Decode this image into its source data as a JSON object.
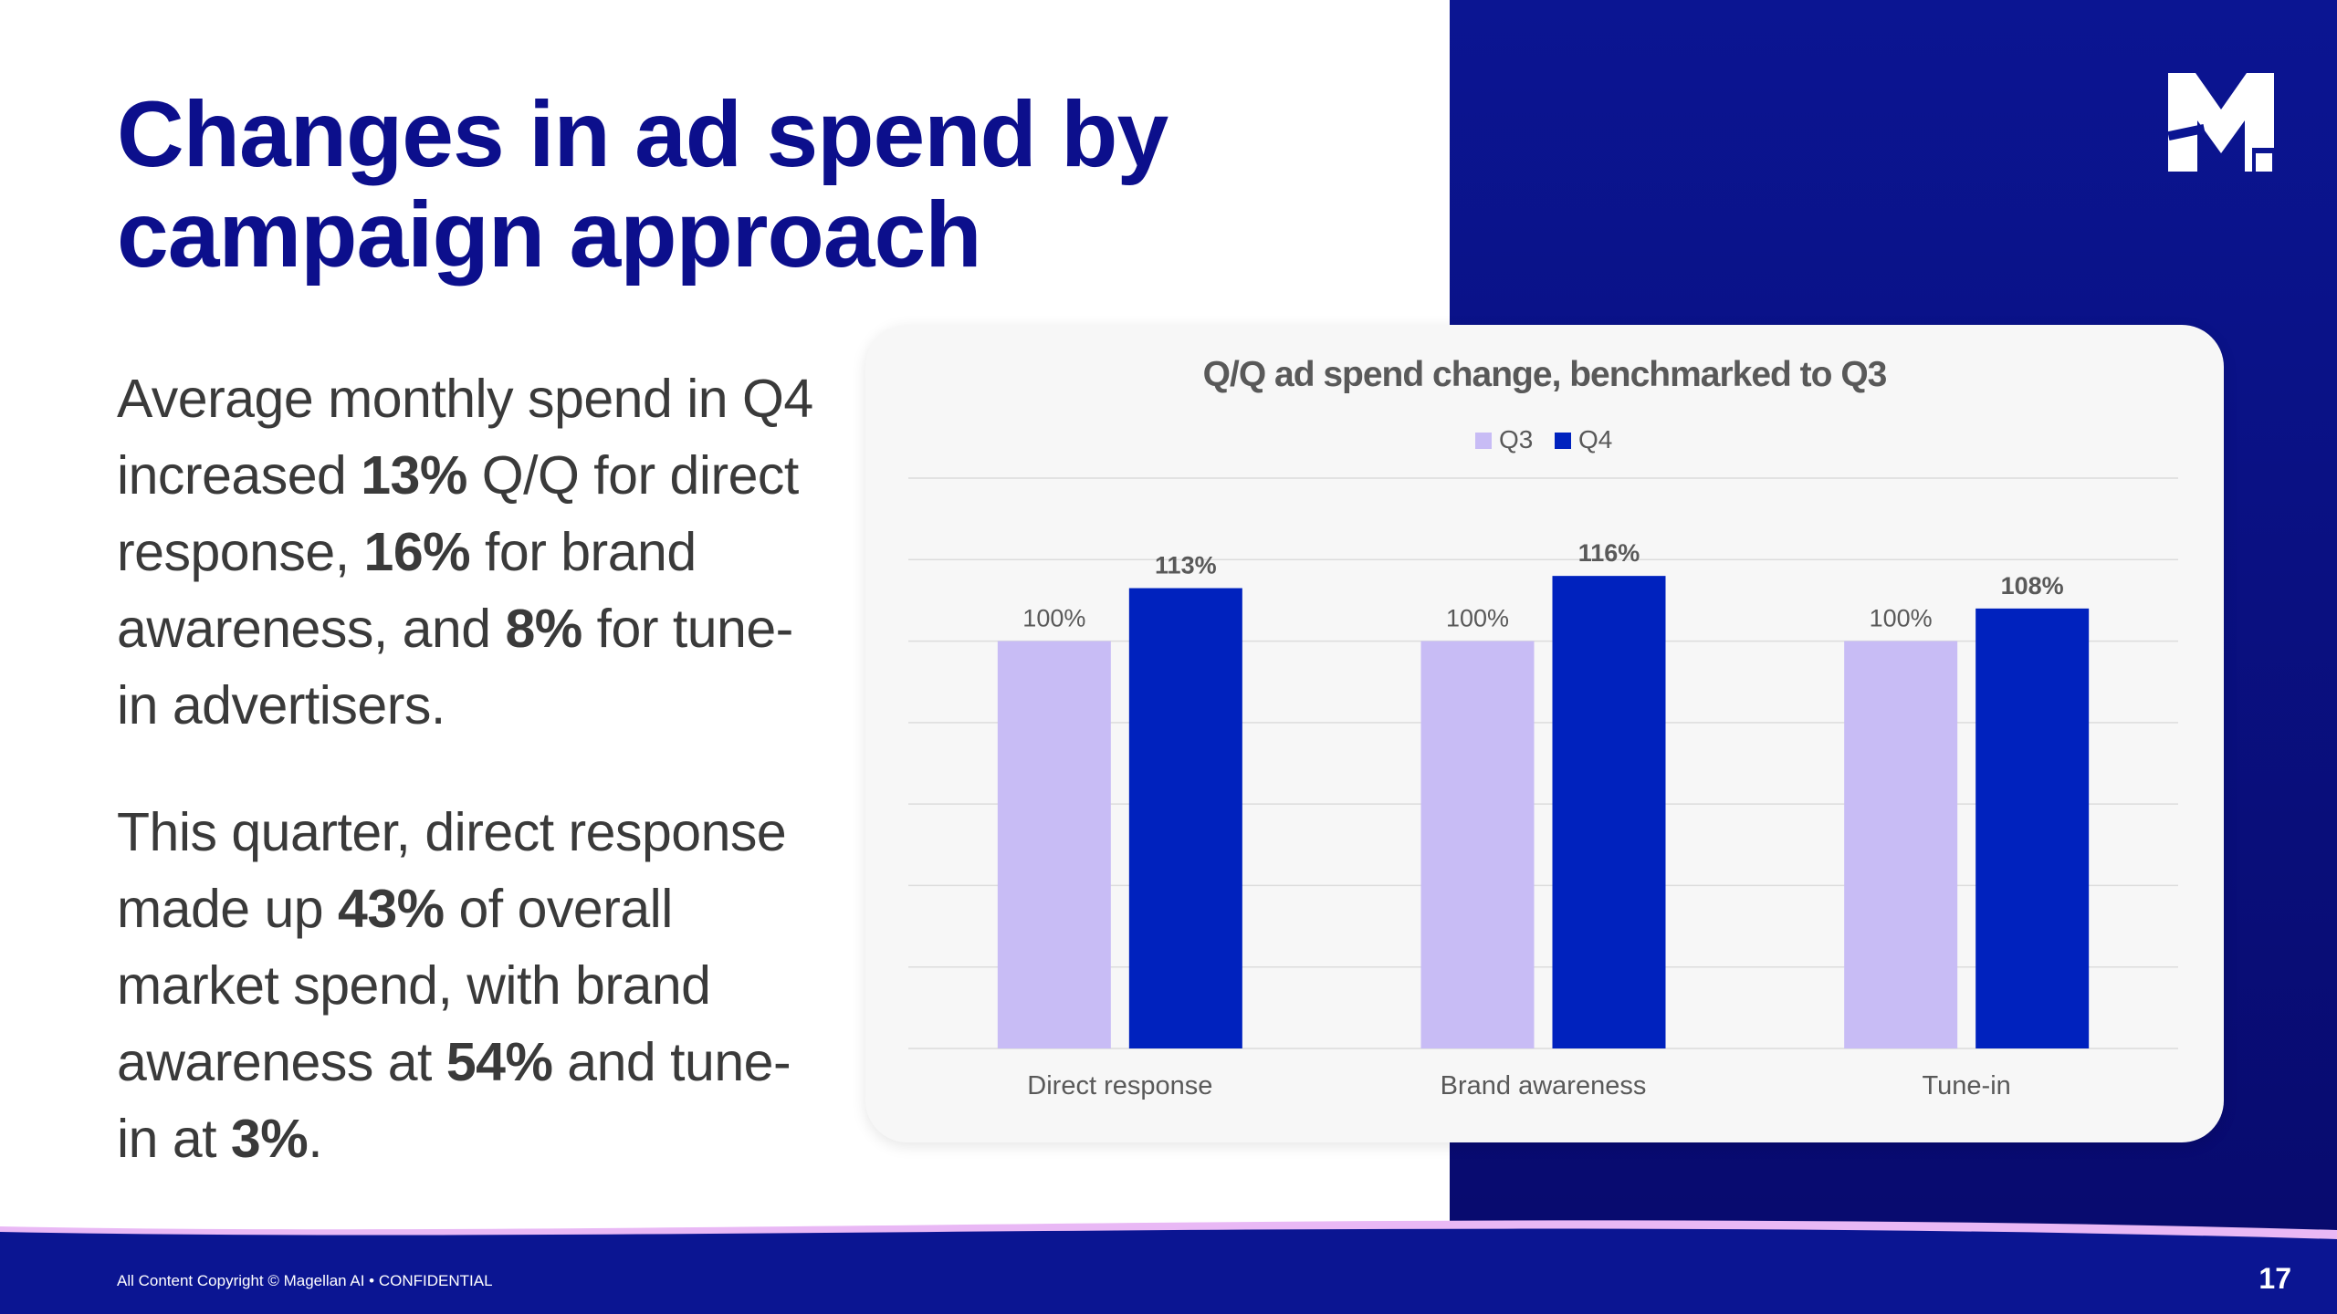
{
  "slide": {
    "title": "Changes in ad spend by campaign approach",
    "paragraph1": [
      {
        "text": "Average monthly spend in Q4 increased ",
        "bold": false
      },
      {
        "text": "13%",
        "bold": true
      },
      {
        "text": " Q/Q for direct response, ",
        "bold": false
      },
      {
        "text": "16%",
        "bold": true
      },
      {
        "text": " for brand awareness, and ",
        "bold": false
      },
      {
        "text": "8%",
        "bold": true
      },
      {
        "text": " for tune-in advertisers.",
        "bold": false
      }
    ],
    "paragraph2": [
      {
        "text": "This quarter, direct response made up ",
        "bold": false
      },
      {
        "text": "43%",
        "bold": true
      },
      {
        "text": " of overall market spend, with brand awareness at ",
        "bold": false
      },
      {
        "text": "54%",
        "bold": true
      },
      {
        "text": " and tune-in at ",
        "bold": false
      },
      {
        "text": "3%",
        "bold": true
      },
      {
        "text": ".",
        "bold": false
      }
    ]
  },
  "footer": {
    "copyright": "All Content Copyright © Magellan AI • CONFIDENTIAL",
    "page_number": "17"
  },
  "logo": {
    "icon": "m-logo-icon"
  },
  "colors": {
    "title": "#0c0f8c",
    "panel": "#0b1592",
    "q3": "#c8bcf5",
    "q4": "#0022be",
    "footer_wave": "#e9b8f5"
  },
  "chart_data": {
    "type": "bar",
    "title": "Q/Q ad spend change, benchmarked to Q3",
    "categories": [
      "Direct response",
      "Brand awareness",
      "Tune-in"
    ],
    "series": [
      {
        "name": "Q3",
        "values": [
          100,
          100,
          100
        ],
        "labels": [
          "100%",
          "100%",
          "100%"
        ],
        "color": "#c8bcf5"
      },
      {
        "name": "Q4",
        "values": [
          113,
          116,
          108
        ],
        "labels": [
          "113%",
          "116%",
          "108%"
        ],
        "color": "#0022be"
      }
    ],
    "ylim": [
      0,
      140
    ],
    "grid": true,
    "legend": "top-center",
    "xlabel": "",
    "ylabel": ""
  }
}
